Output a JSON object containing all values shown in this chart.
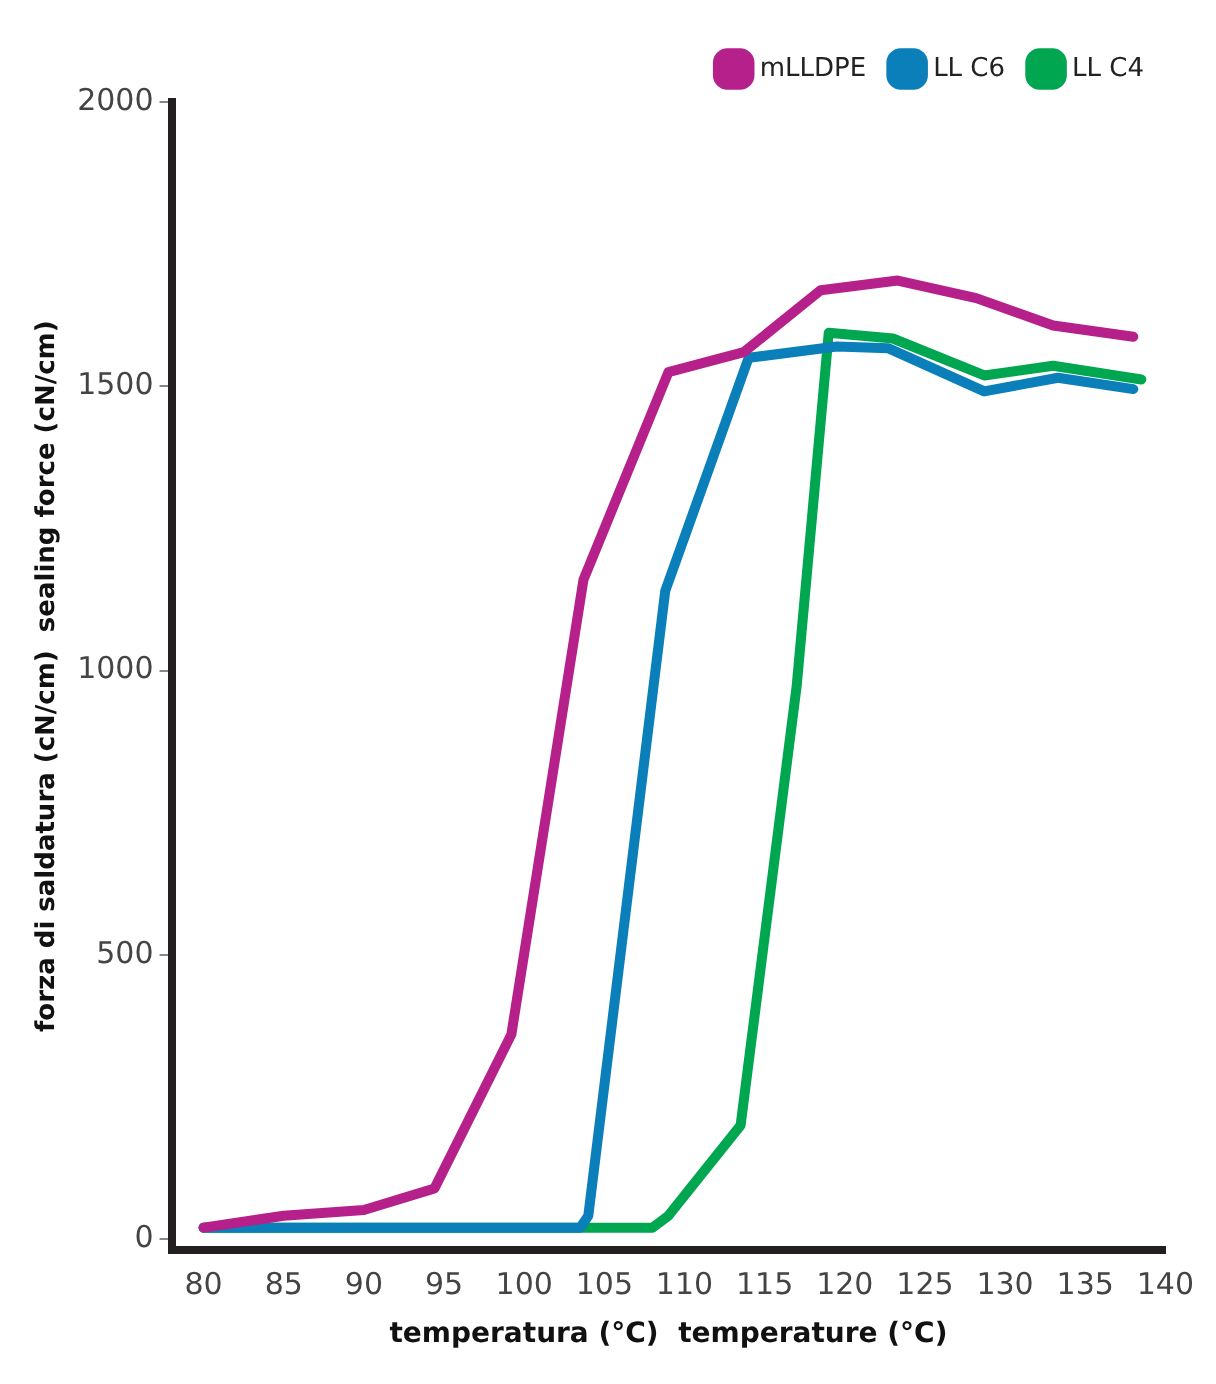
{
  "chart_data": {
    "type": "line",
    "xlabel": "temperatura (°C)  temperature (°C)",
    "ylabel": "forza di saldatura (cN/cm)  sealing force (cN/cm)",
    "xlim": [
      78,
      140
    ],
    "xticks": [
      80,
      85,
      90,
      95,
      100,
      105,
      110,
      115,
      120,
      125,
      130,
      135,
      140
    ],
    "ylim": [
      -20,
      2000
    ],
    "yticks": [
      0,
      500,
      1000,
      1500,
      2000
    ],
    "grid": false,
    "legend": "top right",
    "marker": "none",
    "line_style": "solid",
    "series": [
      {
        "name": "mLLDPE",
        "color": "#b5208a",
        "x": [
          80,
          85,
          90,
          94.4,
          99.2,
          103.7,
          109,
          113.7,
          118.5,
          123.3,
          128.2,
          133,
          138
        ],
        "values": [
          20,
          41,
          51,
          89,
          360,
          1160,
          1525,
          1560,
          1669,
          1686,
          1655,
          1607,
          1587
        ]
      },
      {
        "name": "LL C6",
        "color": "#0a7fba",
        "x": [
          80,
          103.5,
          104,
          108.8,
          114,
          119.5,
          122.7,
          128.7,
          133.3,
          138
        ],
        "values": [
          20,
          20,
          41,
          1140,
          1550,
          1570,
          1567,
          1491,
          1515,
          1495
        ]
      },
      {
        "name": "LL C4",
        "color": "#00a650",
        "x": [
          80,
          108,
          109,
          113.5,
          117,
          119,
          123,
          128.7,
          133,
          138.5
        ],
        "values": [
          20,
          20,
          41,
          200,
          973,
          1594,
          1584,
          1519,
          1536,
          1512
        ]
      }
    ]
  }
}
